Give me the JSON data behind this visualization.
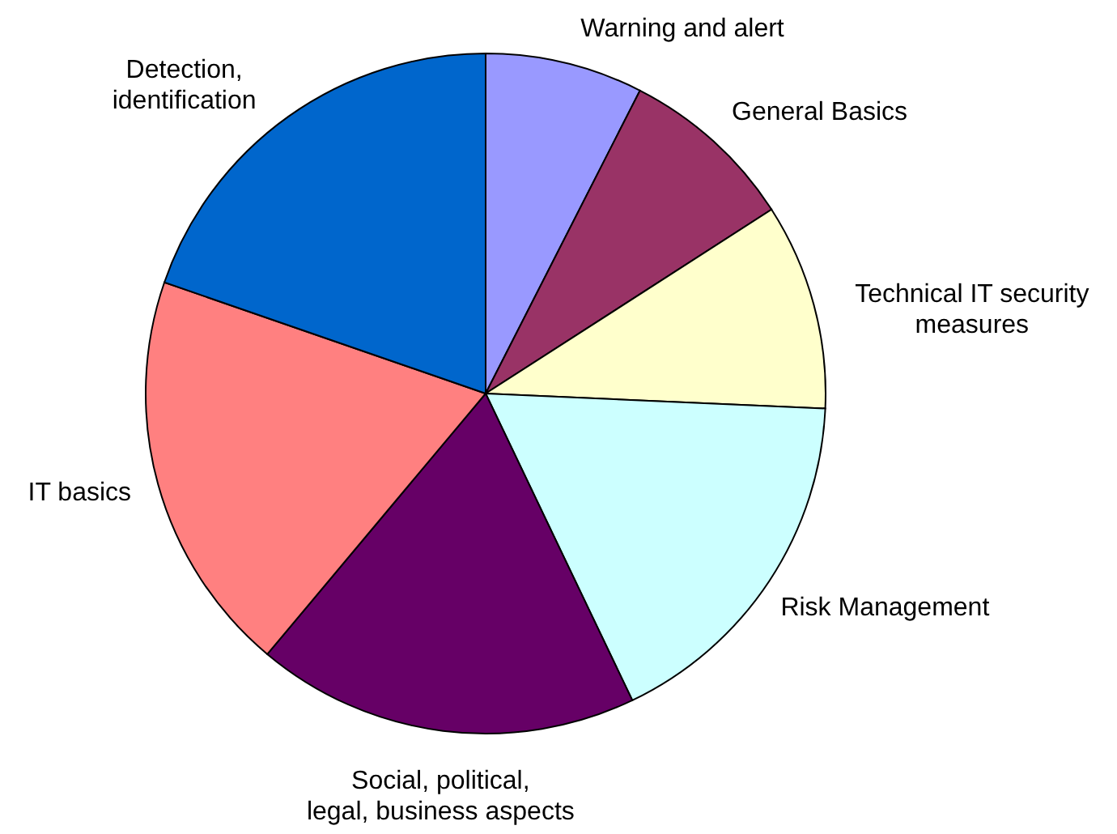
{
  "chart_data": {
    "type": "pie",
    "categories": [
      "Warning and alert",
      "General Basics",
      "Technical IT security measures",
      "Risk Management",
      "Social, political, legal, business aspects",
      "IT basics",
      "Detection, identification"
    ],
    "values": [
      7.5,
      8.4,
      9.8,
      17.2,
      18.2,
      19.2,
      19.7
    ],
    "colors": [
      "#9999ff",
      "#993366",
      "#ffffcc",
      "#ccffff",
      "#660066",
      "#ff8080",
      "#0066cc"
    ]
  }
}
